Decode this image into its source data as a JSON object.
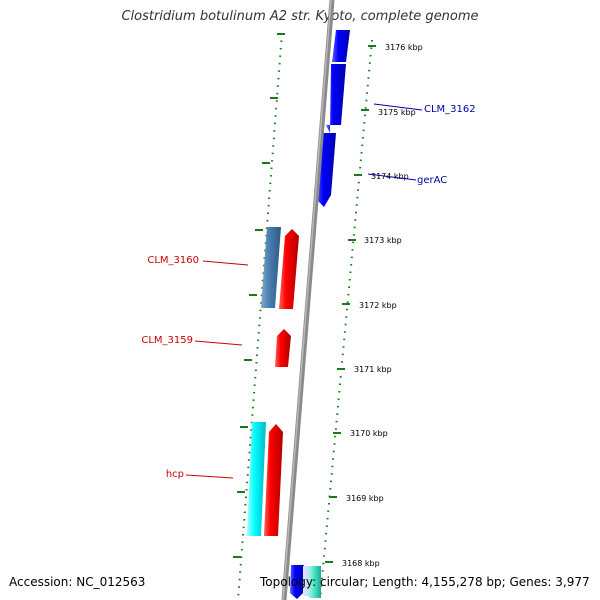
{
  "title": "Clostridium botulinum A2 str. Kyoto, complete genome",
  "accession": "Accession: NC_012563",
  "summary": "Topology: circular; Length: 4,155,278 bp; Genes: 3,977",
  "colors": {
    "backbone": "#8a8a8a",
    "ticks": "#1a7a1a",
    "forward_gene": "#0000ee",
    "forward_gene_alt": "#40e0c0",
    "reverse_gene": "#ff0000",
    "reverse_gene_alt1": "#4a7fb0",
    "reverse_gene_alt2": "#00ffff",
    "forward_label": "#0000aa",
    "reverse_label": "#cc0000"
  },
  "scale_labels": [
    "3176 kbp",
    "3175 kbp",
    "3174 kbp",
    "3173 kbp",
    "3172 kbp",
    "3171 kbp",
    "3170 kbp",
    "3169 kbp",
    "3168 kbp"
  ],
  "gene_labels": {
    "clm3162": "CLM_3162",
    "gerac": "gerAC",
    "clm3160": "CLM_3160",
    "clm3159": "CLM_3159",
    "hcp": "hcp"
  }
}
